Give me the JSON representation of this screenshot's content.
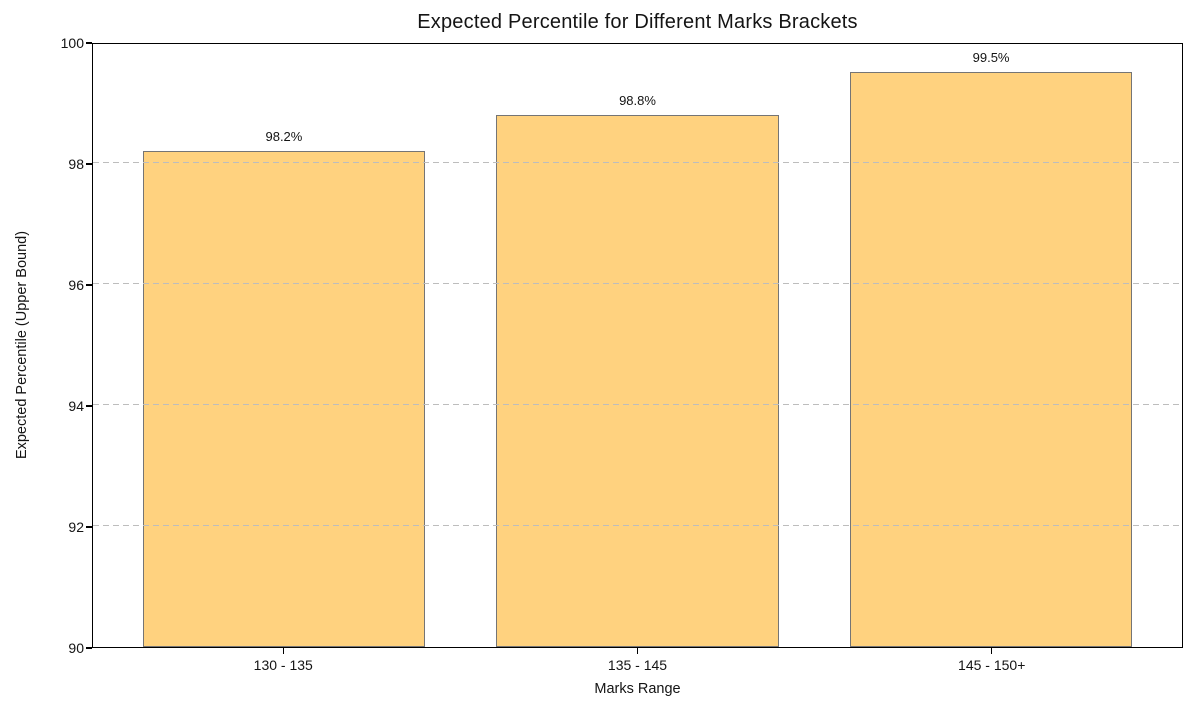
{
  "chart_data": {
    "type": "bar",
    "title": "Expected Percentile for Different Marks Brackets",
    "xlabel": "Marks Range",
    "ylabel": "Expected Percentile (Upper Bound)",
    "categories": [
      "130 - 135",
      "135 - 145",
      "145 - 150+"
    ],
    "values": [
      98.2,
      98.8,
      99.5
    ],
    "bar_labels": [
      "98.2%",
      "98.8%",
      "99.5%"
    ],
    "ylim": [
      90,
      100
    ],
    "yticks": [
      90,
      92,
      94,
      96,
      98,
      100
    ],
    "grid": "horizontal dashed lines at interior yticks, drawn above bars",
    "legend": "none",
    "colors": {
      "bar_fill": "#FFD27F",
      "bar_edge": "#757575",
      "gridline": "#BDBDBD",
      "spine": "#000000",
      "text": "#141414",
      "background": "#FFFFFF"
    }
  }
}
